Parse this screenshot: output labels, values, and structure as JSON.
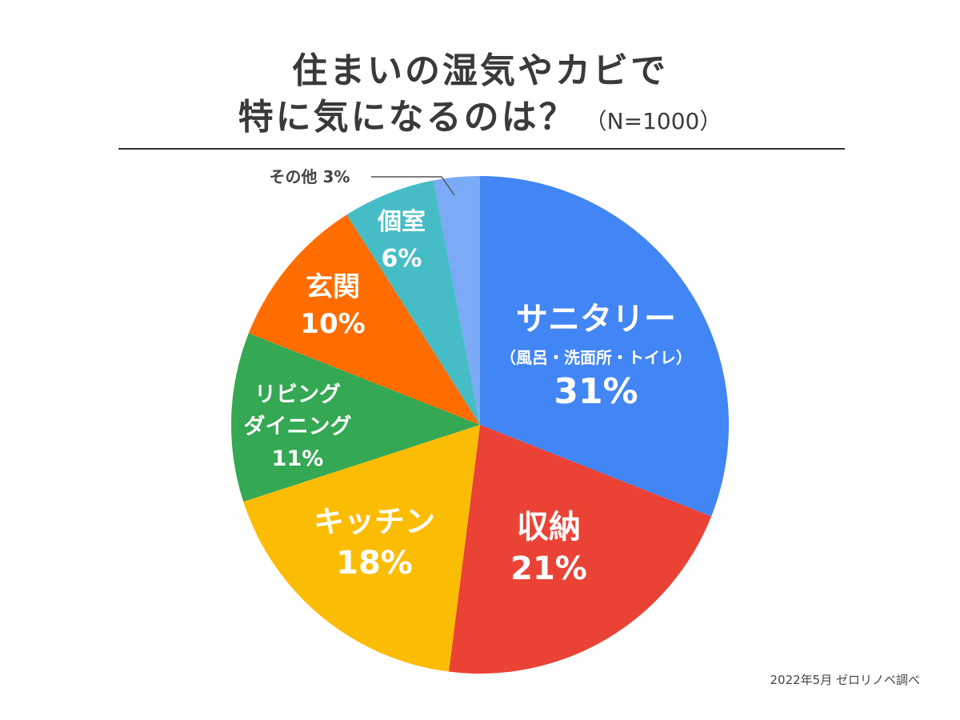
{
  "title_line1": "住まいの湿気やカビで",
  "title_line2": "特に気になるのは？",
  "sample": "（N=1000）",
  "source": "2022年5月 ゼロリノベ調べ",
  "chart_data": {
    "type": "pie",
    "title": "住まいの湿気やカビで特に気になるのは？（N=1000）",
    "start": "12 o'clock",
    "direction": "clockwise",
    "slices": [
      {
        "id": "sanitary",
        "lines": [
          "サニタリー",
          "（風呂・洗面所・トイレ）"
        ],
        "pct_label": "31%",
        "value": 31,
        "color": "#4285F4"
      },
      {
        "id": "storage",
        "lines": [
          "収納"
        ],
        "pct_label": "21%",
        "value": 21,
        "color": "#EA4335"
      },
      {
        "id": "kitchen",
        "lines": [
          "キッチン"
        ],
        "pct_label": "18%",
        "value": 18,
        "color": "#FBBC04"
      },
      {
        "id": "living",
        "lines": [
          "リビング",
          "ダイニング"
        ],
        "pct_label": "11%",
        "value": 11,
        "color": "#34A853"
      },
      {
        "id": "entrance",
        "lines": [
          "玄関"
        ],
        "pct_label": "10%",
        "value": 10,
        "color": "#FF6D01"
      },
      {
        "id": "room",
        "lines": [
          "個室"
        ],
        "pct_label": "6%",
        "value": 6,
        "color": "#46BDC6"
      },
      {
        "id": "other",
        "lines": [
          "その他"
        ],
        "pct_label": "3%",
        "value": 3,
        "color": "#7BAAF7"
      }
    ]
  }
}
